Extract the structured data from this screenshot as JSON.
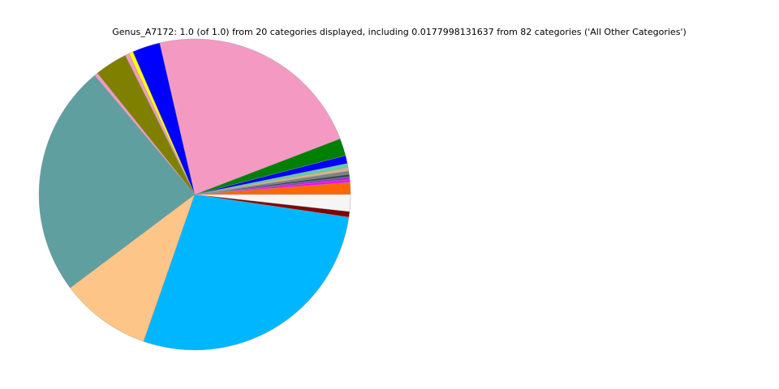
{
  "chart_data": {
    "type": "pie",
    "title": "Genus_A7172: 1.0 (of 1.0) from 20 categories displayed, including 0.0177998131637 from 82 categories ('All Other Categories')",
    "values": [
      0.0125,
      0.0028,
      0.0028,
      0.0028,
      0.0033,
      0.0036,
      0.0042,
      0.0083,
      0.0181,
      0.2278,
      0.0289,
      0.0044,
      0.0042,
      0.0339,
      0.0036,
      0.2414,
      0.0942,
      0.28,
      0.0058,
      0.0175
    ],
    "colors": [
      "#ff6600",
      "#ff00ff",
      "#9932cc",
      "#2f4f4f",
      "#808080",
      "#d2b48c",
      "#66cdaa",
      "#0000ff",
      "#008000",
      "#f49ac2",
      "#0000ff",
      "#ffff00",
      "#f49ac2",
      "#808000",
      "#f49ac2",
      "#5f9f9f",
      "#fdc688",
      "#00b7ff",
      "#800000",
      "#f5f5f5"
    ]
  }
}
